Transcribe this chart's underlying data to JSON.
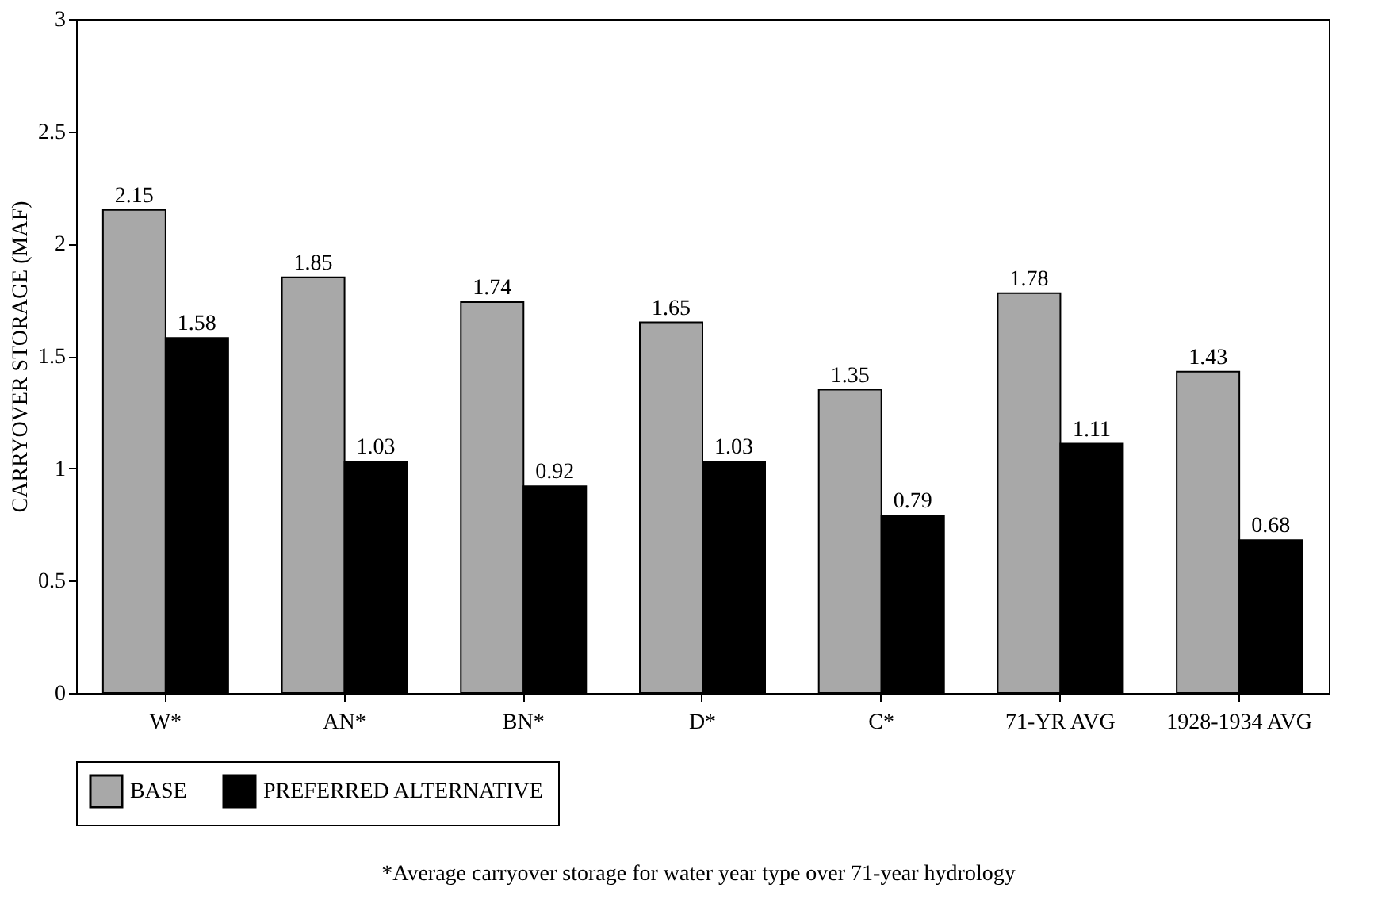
{
  "chart_data": {
    "type": "bar",
    "ylabel": "CARRYOVER STORAGE (MAF)",
    "categories": [
      "W*",
      "AN*",
      "BN*",
      "D*",
      "C*",
      "71-YR AVG",
      "1928-1934 AVG"
    ],
    "series": [
      {
        "name": "BASE",
        "color": "#a8a8a8",
        "values": [
          2.15,
          1.85,
          1.74,
          1.65,
          1.35,
          1.78,
          1.43
        ]
      },
      {
        "name": "PREFERRED ALTERNATIVE",
        "color": "#000000",
        "values": [
          1.58,
          1.03,
          0.92,
          1.03,
          0.79,
          1.11,
          0.68
        ]
      }
    ],
    "ylim": [
      0,
      3
    ],
    "yticks": [
      0,
      0.5,
      1,
      1.5,
      2,
      2.5,
      3
    ],
    "grid": false,
    "legend": "bottom",
    "data_labels": true,
    "annotations": [
      "*Average carryover storage for water year type over 71-year hydrology"
    ]
  }
}
